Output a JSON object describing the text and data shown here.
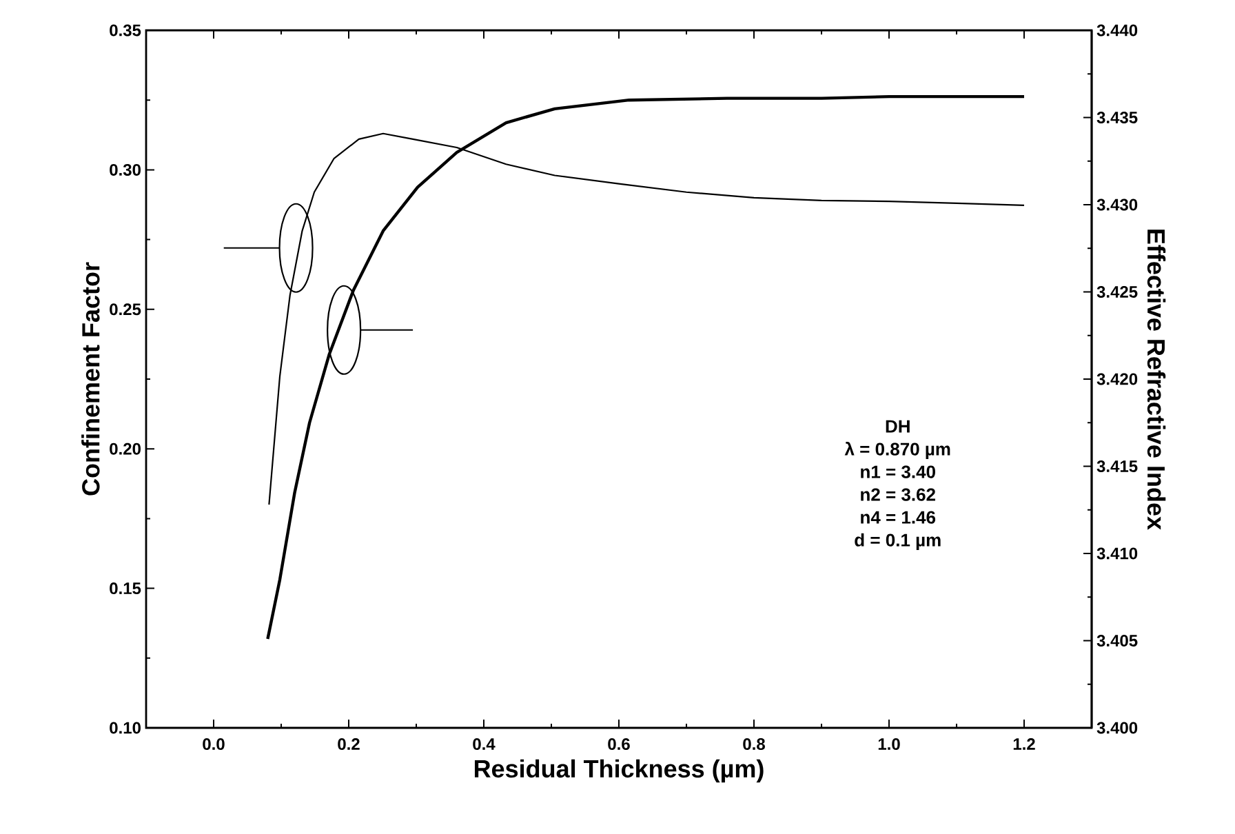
{
  "chart_data": {
    "type": "line",
    "xlabel": "Residual Thickness (µm)",
    "ylabel": "Confinement Factor",
    "y2label": "Effective Refractive Index",
    "xlim": [
      -0.1,
      1.3
    ],
    "xticks": [
      {
        "value": 0,
        "label": "0.0"
      },
      0.2,
      0.4,
      0.6,
      0.8,
      {
        "value": 1,
        "label": "1.0"
      },
      1.2
    ],
    "ylim": [
      0.1,
      0.35
    ],
    "yticks": [
      {
        "value": 0.1,
        "label": "0.10"
      },
      0.15,
      {
        "value": 0.2,
        "label": "0.20"
      },
      0.25,
      {
        "value": 0.3,
        "label": "0.30"
      },
      0.35
    ],
    "y2lim": [
      3.4,
      3.44
    ],
    "y2ticks": [
      {
        "value": 3.4,
        "label": "3.400"
      },
      3.405,
      {
        "value": 3.41,
        "label": "3.410"
      },
      3.415,
      {
        "value": 3.42,
        "label": "3.420"
      },
      3.425,
      {
        "value": 3.43,
        "label": "3.430"
      },
      3.435,
      {
        "value": 3.44,
        "label": "3.440"
      }
    ],
    "series": [
      {
        "color": "#000000",
        "x": [
          0.082,
          0.098,
          0.113,
          0.131,
          0.149,
          0.178,
          0.215,
          0.251,
          0.295,
          0.36,
          0.433,
          0.505,
          0.6,
          0.7,
          0.8,
          0.9,
          1.0,
          1.1,
          1.2
        ],
        "values": [
          0.18,
          0.226,
          0.255,
          0.278,
          0.292,
          0.304,
          0.311,
          0.313,
          0.311,
          0.308,
          0.302,
          0.298,
          0.295,
          0.292,
          0.29,
          0.289,
          0.2887,
          0.288,
          0.2873
        ]
      },
      {
        "color": "#000000",
        "axis": "y2",
        "x": [
          0.08,
          0.098,
          0.12,
          0.142,
          0.171,
          0.207,
          0.251,
          0.302,
          0.36,
          0.433,
          0.505,
          0.615,
          0.76,
          0.9,
          1.0,
          1.1,
          1.2
        ],
        "values": [
          3.4051,
          3.4085,
          3.4135,
          3.4175,
          3.4214,
          3.4251,
          3.4285,
          3.431,
          3.433,
          3.4347,
          3.4355,
          3.436,
          3.4361,
          3.4361,
          3.4362,
          3.4362,
          3.4362
        ]
      }
    ],
    "annotations": [
      "DH",
      "λ = 0.870 µm",
      "n1 = 3.40",
      "n2 = 3.62",
      "n4 = 1.46",
      "d  = 0.1 µm"
    ],
    "line_style": "solid",
    "marker": "none"
  }
}
